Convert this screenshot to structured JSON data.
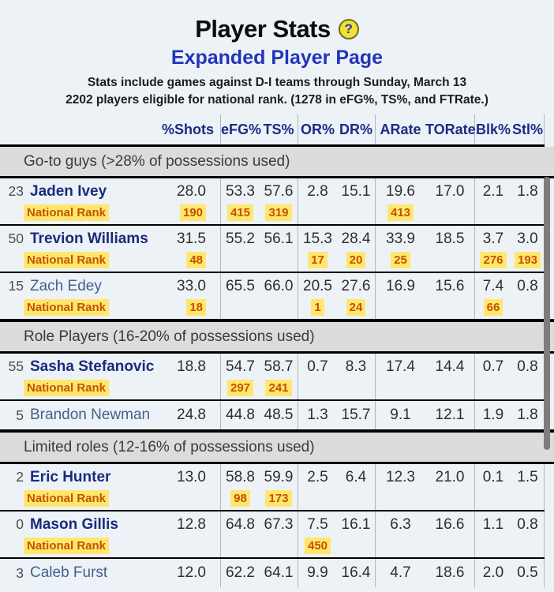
{
  "header": {
    "title": "Player Stats",
    "help_glyph": "?",
    "subtitle": "Expanded Player Page",
    "info1": {
      "pre": "Stats include games against ",
      "strong": "D-I",
      "post": " teams through Sunday, March 13"
    },
    "info2": "2202 players eligible for national rank. (1278 in eFG%, TS%, and FTRate.)"
  },
  "colors": {
    "page_bg": "#edf2f7",
    "section_band_bg": "#dcdcdc",
    "header_navy": "#1b2b85",
    "subtitle_blue": "#2334bb",
    "name_bold_navy": "#1a2b7c",
    "name_light_blue": "#41618e",
    "rank_orange": "#c35200",
    "rank_highlight_yellow": "#ffe76e",
    "help_icon_yellow": "#f2e234",
    "scrollbar_gray": "#7d7d7d"
  },
  "table": {
    "columns": [
      "%Shots",
      "eFG%",
      "TS%",
      "OR%",
      "DR%",
      "ARate",
      "TORate",
      "Blk%",
      "Stl%"
    ],
    "rank_label": "National Rank",
    "sections": [
      {
        "header": "Go-to guys (>28% of possessions used)",
        "players": [
          {
            "number": "23",
            "name": "Jaden Ivey",
            "bold": true,
            "values": [
              "28.0",
              "53.3",
              "57.6",
              "2.8",
              "15.1",
              "19.6",
              "17.0",
              "2.1",
              "1.8"
            ],
            "ranks": [
              "190",
              "415",
              "319",
              "",
              "",
              "413",
              "",
              "",
              ""
            ]
          },
          {
            "number": "50",
            "name": "Trevion Williams",
            "bold": true,
            "values": [
              "31.5",
              "55.2",
              "56.1",
              "15.3",
              "28.4",
              "33.9",
              "18.5",
              "3.7",
              "3.0"
            ],
            "ranks": [
              "48",
              "",
              "",
              "17",
              "20",
              "25",
              "",
              "276",
              "193"
            ]
          },
          {
            "number": "15",
            "name": "Zach Edey",
            "bold": false,
            "values": [
              "33.0",
              "65.5",
              "66.0",
              "20.5",
              "27.6",
              "16.9",
              "15.6",
              "7.4",
              "0.8"
            ],
            "ranks": [
              "18",
              "",
              "",
              "1",
              "24",
              "",
              "",
              "66",
              ""
            ]
          }
        ]
      },
      {
        "header": "Role Players (16-20% of possessions used)",
        "players": [
          {
            "number": "55",
            "name": "Sasha Stefanovic",
            "bold": true,
            "values": [
              "18.8",
              "54.7",
              "58.7",
              "0.7",
              "8.3",
              "17.4",
              "14.4",
              "0.7",
              "0.8"
            ],
            "ranks": [
              "",
              "297",
              "241",
              "",
              "",
              "",
              "",
              "",
              ""
            ]
          },
          {
            "number": "5",
            "name": "Brandon Newman",
            "bold": false,
            "values": [
              "24.8",
              "44.8",
              "48.5",
              "1.3",
              "15.7",
              "9.1",
              "12.1",
              "1.9",
              "1.8"
            ],
            "ranks": null
          }
        ]
      },
      {
        "header": "Limited roles (12-16% of possessions used)",
        "players": [
          {
            "number": "2",
            "name": "Eric Hunter",
            "bold": true,
            "values": [
              "13.0",
              "58.8",
              "59.9",
              "2.5",
              "6.4",
              "12.3",
              "21.0",
              "0.1",
              "1.5"
            ],
            "ranks": [
              "",
              "98",
              "173",
              "",
              "",
              "",
              "",
              "",
              ""
            ]
          },
          {
            "number": "0",
            "name": "Mason Gillis",
            "bold": true,
            "values": [
              "12.8",
              "64.8",
              "67.3",
              "7.5",
              "16.1",
              "6.3",
              "16.6",
              "1.1",
              "0.8"
            ],
            "ranks": [
              "",
              "",
              "",
              "450",
              "",
              "",
              "",
              "",
              ""
            ]
          },
          {
            "number": "3",
            "name": "Caleb Furst",
            "bold": false,
            "values": [
              "12.0",
              "62.2",
              "64.1",
              "9.9",
              "16.4",
              "4.7",
              "18.6",
              "2.0",
              "0.5"
            ],
            "ranks": null
          }
        ]
      }
    ]
  }
}
